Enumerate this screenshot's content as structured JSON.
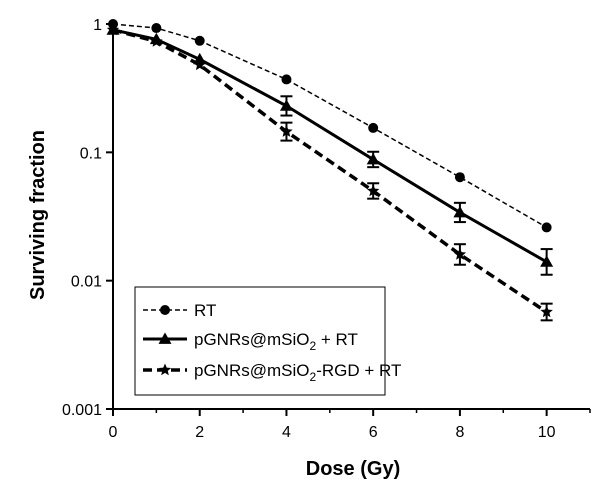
{
  "chart_data": {
    "type": "line",
    "xlabel": "Dose (Gy)",
    "ylabel": "Surviving fraction",
    "xlim": [
      0,
      11
    ],
    "ylim": [
      0.001,
      1
    ],
    "y_scale": "log",
    "x_ticks": [
      "0",
      "2",
      "4",
      "6",
      "8",
      "10"
    ],
    "y_ticks": [
      "0.001",
      "0.01",
      "0.1",
      "1"
    ],
    "grid": false,
    "legend_position": "bottom-left",
    "series": [
      {
        "name": "RT",
        "marker": "circle",
        "line_style": "dashed-thin",
        "color": "#000000",
        "points": [
          {
            "x": 0,
            "y": 1.0
          },
          {
            "x": 1,
            "y": 0.93
          },
          {
            "x": 2,
            "y": 0.74
          },
          {
            "x": 4,
            "y": 0.37
          },
          {
            "x": 6,
            "y": 0.155
          },
          {
            "x": 8,
            "y": 0.064
          },
          {
            "x": 10,
            "y": 0.026
          }
        ],
        "errors": [
          0,
          0,
          0,
          0,
          0,
          0,
          0
        ]
      },
      {
        "name_parts": {
          "pre": "pGNRs@mSiO",
          "sub": "2",
          "post": " + RT"
        },
        "marker": "triangle",
        "line_style": "solid",
        "color": "#000000",
        "points": [
          {
            "x": 0,
            "y": 0.9
          },
          {
            "x": 1,
            "y": 0.76
          },
          {
            "x": 2,
            "y": 0.53
          },
          {
            "x": 4,
            "y": 0.23
          },
          {
            "x": 6,
            "y": 0.088
          },
          {
            "x": 8,
            "y": 0.034
          },
          {
            "x": 10,
            "y": 0.014
          }
        ],
        "errors": [
          0,
          0,
          0,
          0.15,
          0.12,
          0.15,
          0.2
        ]
      },
      {
        "name_parts": {
          "pre": "pGNRs@mSiO",
          "sub": "2",
          "post": "-RGD + RT"
        },
        "marker": "star",
        "line_style": "dashed-thick",
        "color": "#000000",
        "points": [
          {
            "x": 0,
            "y": 0.9
          },
          {
            "x": 1,
            "y": 0.73
          },
          {
            "x": 2,
            "y": 0.48
          },
          {
            "x": 4,
            "y": 0.145
          },
          {
            "x": 6,
            "y": 0.05
          },
          {
            "x": 8,
            "y": 0.016
          },
          {
            "x": 10,
            "y": 0.0057
          }
        ],
        "errors": [
          0,
          0,
          0,
          0.14,
          0.12,
          0.16,
          0.13
        ]
      }
    ],
    "legend": [
      {
        "text": "RT"
      },
      {
        "pre": "pGNRs@mSiO",
        "sub": "2",
        "post": " + RT"
      },
      {
        "pre": "pGNRs@mSiO",
        "sub": "2",
        "post": "-RGD + RT"
      }
    ]
  }
}
